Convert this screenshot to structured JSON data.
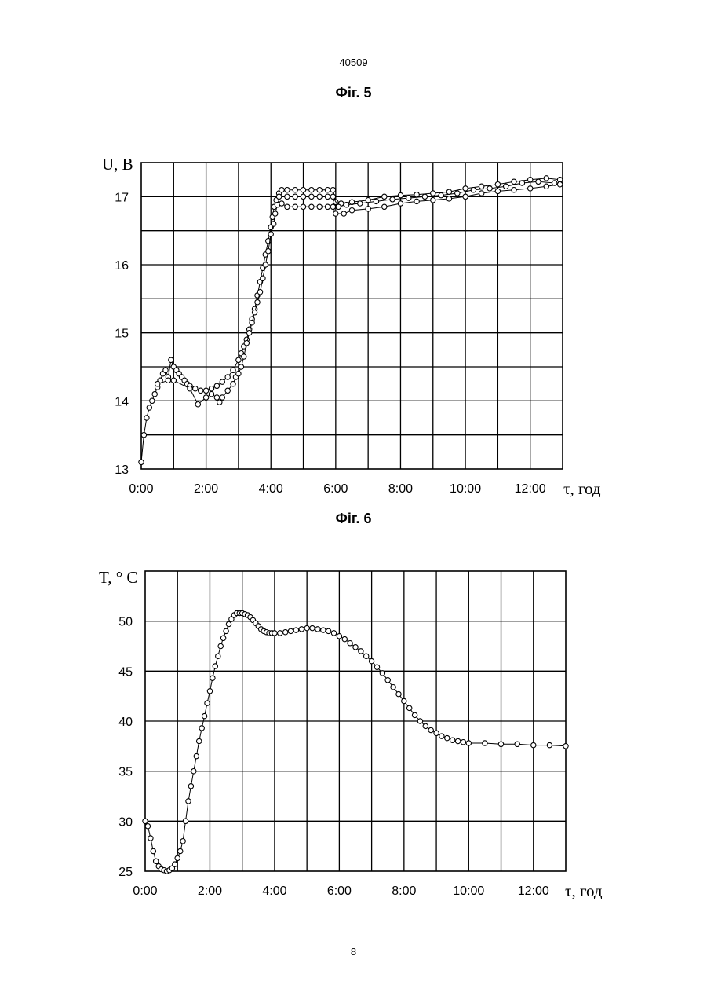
{
  "page": {
    "patent_number": "40509",
    "page_number": "8"
  },
  "chart_data": [
    {
      "type": "scatter",
      "figure_label": "Фіг. 5",
      "title": "",
      "ylabel": "U, В",
      "xlabel": "τ, год",
      "x_ticks": [
        "0:00",
        "2:00",
        "4:00",
        "6:00",
        "8:00",
        "10:00",
        "12:00"
      ],
      "y_ticks": [
        "13",
        "14",
        "15",
        "16",
        "17"
      ],
      "xlim": [
        "0:00",
        "13:00"
      ],
      "ylim": [
        13,
        17.5
      ],
      "grid": true,
      "series": [
        {
          "points": [
            [
              "0:00",
              13.1
            ],
            [
              "0:05",
              13.5
            ],
            [
              "0:10",
              13.75
            ],
            [
              "0:15",
              13.9
            ],
            [
              "0:20",
              14.0
            ],
            [
              "0:25",
              14.1
            ],
            [
              "0:30",
              14.2
            ],
            [
              "0:35",
              14.3
            ],
            [
              "0:40",
              14.4
            ],
            [
              "0:45",
              14.45
            ],
            [
              "0:50",
              14.35
            ],
            [
              "0:55",
              14.6
            ],
            [
              "1:00",
              14.5
            ],
            [
              "1:05",
              14.45
            ],
            [
              "1:10",
              14.4
            ],
            [
              "1:15",
              14.35
            ],
            [
              "1:20",
              14.3
            ],
            [
              "1:25",
              14.25
            ],
            [
              "1:30",
              14.22
            ],
            [
              "1:40",
              14.18
            ],
            [
              "1:50",
              14.15
            ],
            [
              "2:00",
              14.15
            ],
            [
              "2:10",
              14.18
            ],
            [
              "2:20",
              14.22
            ],
            [
              "2:30",
              14.28
            ],
            [
              "2:40",
              14.35
            ],
            [
              "2:50",
              14.45
            ],
            [
              "3:00",
              14.6
            ],
            [
              "3:05",
              14.7
            ],
            [
              "3:10",
              14.8
            ],
            [
              "3:15",
              14.9
            ],
            [
              "3:20",
              15.05
            ],
            [
              "3:25",
              15.2
            ],
            [
              "3:30",
              15.35
            ],
            [
              "3:35",
              15.55
            ],
            [
              "3:40",
              15.75
            ],
            [
              "3:45",
              15.95
            ],
            [
              "3:50",
              16.15
            ],
            [
              "3:55",
              16.35
            ],
            [
              "4:00",
              16.55
            ],
            [
              "4:03",
              16.7
            ],
            [
              "4:06",
              16.85
            ],
            [
              "4:10",
              16.95
            ],
            [
              "4:15",
              17.05
            ],
            [
              "4:20",
              17.1
            ],
            [
              "4:30",
              17.1
            ],
            [
              "4:45",
              17.1
            ],
            [
              "5:00",
              17.1
            ],
            [
              "5:15",
              17.1
            ],
            [
              "5:30",
              17.1
            ],
            [
              "5:45",
              17.1
            ],
            [
              "5:55",
              17.1
            ],
            [
              "6:00",
              16.92
            ],
            [
              "6:10",
              16.9
            ],
            [
              "6:30",
              16.92
            ],
            [
              "7:00",
              16.95
            ],
            [
              "7:30",
              17.0
            ],
            [
              "8:00",
              17.02
            ],
            [
              "8:30",
              17.03
            ],
            [
              "9:00",
              17.05
            ],
            [
              "9:30",
              17.07
            ],
            [
              "10:00",
              17.12
            ],
            [
              "10:30",
              17.15
            ],
            [
              "11:00",
              17.18
            ],
            [
              "11:30",
              17.22
            ],
            [
              "12:00",
              17.25
            ],
            [
              "12:30",
              17.27
            ],
            [
              "12:55",
              17.25
            ]
          ]
        },
        {
          "points": [
            [
              "0:30",
              14.25
            ],
            [
              "0:50",
              14.3
            ],
            [
              "1:00",
              14.3
            ],
            [
              "1:30",
              14.18
            ],
            [
              "1:45",
              13.95
            ],
            [
              "2:00",
              14.05
            ],
            [
              "2:10",
              14.1
            ],
            [
              "2:20",
              14.05
            ],
            [
              "2:25",
              13.98
            ],
            [
              "2:30",
              14.05
            ],
            [
              "2:40",
              14.15
            ],
            [
              "2:50",
              14.25
            ],
            [
              "2:55",
              14.35
            ],
            [
              "3:00",
              14.4
            ],
            [
              "3:05",
              14.5
            ],
            [
              "3:10",
              14.65
            ],
            [
              "3:15",
              14.85
            ],
            [
              "3:20",
              15.0
            ],
            [
              "3:25",
              15.15
            ],
            [
              "3:30",
              15.3
            ],
            [
              "3:35",
              15.45
            ],
            [
              "3:40",
              15.6
            ],
            [
              "3:45",
              15.8
            ],
            [
              "3:50",
              16.0
            ],
            [
              "3:55",
              16.2
            ],
            [
              "4:00",
              16.45
            ],
            [
              "4:05",
              16.6
            ],
            [
              "4:08",
              16.75
            ],
            [
              "4:12",
              16.88
            ],
            [
              "4:20",
              16.9
            ],
            [
              "4:30",
              16.85
            ],
            [
              "4:45",
              16.85
            ],
            [
              "5:00",
              16.85
            ],
            [
              "5:15",
              16.85
            ],
            [
              "5:30",
              16.85
            ],
            [
              "5:45",
              16.85
            ],
            [
              "5:55",
              16.85
            ],
            [
              "6:00",
              16.75
            ],
            [
              "6:15",
              16.75
            ],
            [
              "6:30",
              16.8
            ],
            [
              "7:00",
              16.82
            ],
            [
              "7:30",
              16.85
            ],
            [
              "8:00",
              16.9
            ],
            [
              "8:30",
              16.93
            ],
            [
              "9:00",
              16.95
            ],
            [
              "9:30",
              16.97
            ],
            [
              "10:00",
              17.0
            ],
            [
              "10:30",
              17.05
            ],
            [
              "11:00",
              17.08
            ],
            [
              "11:30",
              17.1
            ],
            [
              "12:00",
              17.12
            ],
            [
              "12:30",
              17.15
            ],
            [
              "12:55",
              17.18
            ]
          ]
        },
        {
          "points": [
            [
              "4:15",
              17.0
            ],
            [
              "4:30",
              17.0
            ],
            [
              "4:45",
              17.0
            ],
            [
              "5:00",
              17.0
            ],
            [
              "5:15",
              17.0
            ],
            [
              "5:30",
              17.0
            ],
            [
              "5:45",
              17.0
            ],
            [
              "5:55",
              17.0
            ],
            [
              "6:05",
              16.85
            ],
            [
              "6:20",
              16.88
            ],
            [
              "6:45",
              16.9
            ],
            [
              "7:15",
              16.93
            ],
            [
              "7:45",
              16.96
            ],
            [
              "8:15",
              16.98
            ],
            [
              "8:45",
              17.0
            ],
            [
              "9:15",
              17.02
            ],
            [
              "9:45",
              17.05
            ],
            [
              "10:15",
              17.1
            ],
            [
              "10:45",
              17.12
            ],
            [
              "11:15",
              17.15
            ],
            [
              "11:45",
              17.2
            ],
            [
              "12:15",
              17.22
            ],
            [
              "12:45",
              17.2
            ]
          ]
        }
      ]
    },
    {
      "type": "line",
      "figure_label": "Фіг. 6",
      "title": "",
      "ylabel": "T, ° C",
      "xlabel": "τ, год",
      "x_ticks": [
        "0:00",
        "2:00",
        "4:00",
        "6:00",
        "8:00",
        "10:00",
        "12:00"
      ],
      "y_ticks": [
        "25",
        "30",
        "35",
        "40",
        "45",
        "50"
      ],
      "xlim": [
        "0:00",
        "13:00"
      ],
      "ylim": [
        25,
        55
      ],
      "grid": true,
      "series": [
        {
          "points": [
            [
              "0:00",
              30.0
            ],
            [
              "0:05",
              29.5
            ],
            [
              "0:10",
              28.3
            ],
            [
              "0:15",
              27.0
            ],
            [
              "0:20",
              26.0
            ],
            [
              "0:25",
              25.5
            ],
            [
              "0:30",
              25.2
            ],
            [
              "0:35",
              25.1
            ],
            [
              "0:40",
              25.0
            ],
            [
              "0:45",
              25.1
            ],
            [
              "0:50",
              25.3
            ],
            [
              "0:55",
              25.7
            ],
            [
              "1:00",
              26.3
            ],
            [
              "1:05",
              27.0
            ],
            [
              "1:10",
              28.0
            ],
            [
              "1:15",
              30.0
            ],
            [
              "1:20",
              32.0
            ],
            [
              "1:25",
              33.5
            ],
            [
              "1:30",
              35.0
            ],
            [
              "1:35",
              36.5
            ],
            [
              "1:40",
              38.0
            ],
            [
              "1:45",
              39.3
            ],
            [
              "1:50",
              40.5
            ],
            [
              "1:55",
              41.8
            ],
            [
              "2:00",
              43.0
            ],
            [
              "2:05",
              44.3
            ],
            [
              "2:10",
              45.5
            ],
            [
              "2:15",
              46.5
            ],
            [
              "2:20",
              47.5
            ],
            [
              "2:25",
              48.3
            ],
            [
              "2:30",
              49.0
            ],
            [
              "2:35",
              49.7
            ],
            [
              "2:40",
              50.2
            ],
            [
              "2:45",
              50.6
            ],
            [
              "2:50",
              50.8
            ],
            [
              "2:55",
              50.8
            ],
            [
              "3:00",
              50.8
            ],
            [
              "3:05",
              50.7
            ],
            [
              "3:10",
              50.6
            ],
            [
              "3:15",
              50.4
            ],
            [
              "3:20",
              50.1
            ],
            [
              "3:25",
              49.8
            ],
            [
              "3:30",
              49.5
            ],
            [
              "3:35",
              49.2
            ],
            [
              "3:40",
              49.0
            ],
            [
              "3:45",
              48.9
            ],
            [
              "3:50",
              48.8
            ],
            [
              "3:55",
              48.8
            ],
            [
              "4:00",
              48.8
            ],
            [
              "4:10",
              48.8
            ],
            [
              "4:20",
              48.9
            ],
            [
              "4:30",
              49.0
            ],
            [
              "4:40",
              49.1
            ],
            [
              "4:50",
              49.2
            ],
            [
              "5:00",
              49.3
            ],
            [
              "5:10",
              49.3
            ],
            [
              "5:20",
              49.2
            ],
            [
              "5:30",
              49.1
            ],
            [
              "5:40",
              49.0
            ],
            [
              "5:50",
              48.8
            ],
            [
              "6:00",
              48.5
            ],
            [
              "6:10",
              48.2
            ],
            [
              "6:20",
              47.8
            ],
            [
              "6:30",
              47.4
            ],
            [
              "6:40",
              47.0
            ],
            [
              "6:50",
              46.5
            ],
            [
              "7:00",
              46.0
            ],
            [
              "7:10",
              45.4
            ],
            [
              "7:20",
              44.8
            ],
            [
              "7:30",
              44.1
            ],
            [
              "7:40",
              43.4
            ],
            [
              "7:50",
              42.7
            ],
            [
              "8:00",
              42.0
            ],
            [
              "8:10",
              41.3
            ],
            [
              "8:20",
              40.6
            ],
            [
              "8:30",
              40.0
            ],
            [
              "8:40",
              39.5
            ],
            [
              "8:50",
              39.1
            ],
            [
              "9:00",
              38.8
            ],
            [
              "9:10",
              38.5
            ],
            [
              "9:20",
              38.3
            ],
            [
              "9:30",
              38.1
            ],
            [
              "9:40",
              38.0
            ],
            [
              "9:50",
              37.9
            ],
            [
              "10:00",
              37.8
            ],
            [
              "10:30",
              37.8
            ],
            [
              "11:00",
              37.7
            ],
            [
              "11:30",
              37.7
            ],
            [
              "12:00",
              37.6
            ],
            [
              "12:30",
              37.6
            ],
            [
              "13:00",
              37.5
            ]
          ]
        }
      ]
    }
  ]
}
